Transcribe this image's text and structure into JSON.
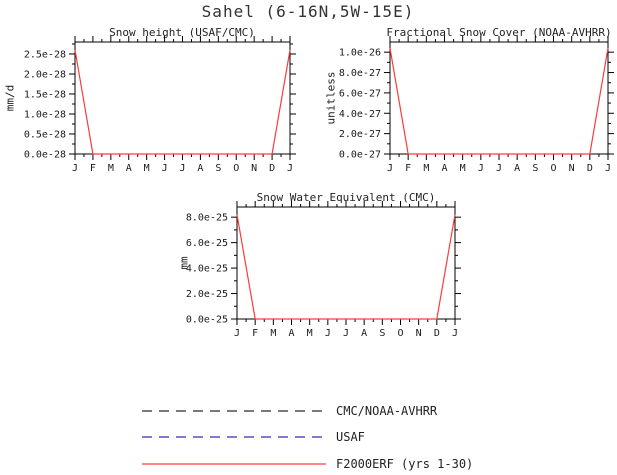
{
  "page": {
    "title": "Sahel (6-16N,5W-15E)"
  },
  "chart_data": [
    {
      "type": "line",
      "title": "Snow height (USAF/CMC)",
      "xlabel": "",
      "ylabel": "mm/d",
      "ylim": [
        0,
        2.8e-28
      ],
      "x_tick_labels": [
        "J",
        "F",
        "M",
        "A",
        "M",
        "J",
        "J",
        "A",
        "S",
        "O",
        "N",
        "D",
        "J"
      ],
      "y_ticks": [
        {
          "value": 0,
          "label": "0.0e-28"
        },
        {
          "value": 5e-29,
          "label": "0.5e-28"
        },
        {
          "value": 1e-28,
          "label": "1.0e-28"
        },
        {
          "value": 1.5e-28,
          "label": "1.5e-28"
        },
        {
          "value": 2e-28,
          "label": "2.0e-28"
        },
        {
          "value": 2.5e-28,
          "label": "2.5e-28"
        }
      ],
      "grid": false,
      "series": [
        {
          "name": "F2000ERF (yrs 1-30)",
          "color": "#fa3c3c",
          "values": [
            2.6e-28,
            0,
            0,
            0,
            0,
            0,
            0,
            0,
            0,
            0,
            0,
            0,
            2.6e-28
          ]
        }
      ]
    },
    {
      "type": "line",
      "title": "Fractional Snow Cover (NOAA-AVHRR)",
      "xlabel": "",
      "ylabel": "unitless",
      "ylim": [
        0,
        1.1e-26
      ],
      "x_tick_labels": [
        "J",
        "F",
        "M",
        "A",
        "M",
        "J",
        "J",
        "A",
        "S",
        "O",
        "N",
        "D",
        "J"
      ],
      "y_ticks": [
        {
          "value": 0,
          "label": "0.0e-27"
        },
        {
          "value": 2e-27,
          "label": "2.0e-27"
        },
        {
          "value": 4e-27,
          "label": "4.0e-27"
        },
        {
          "value": 6e-27,
          "label": "6.0e-27"
        },
        {
          "value": 8e-27,
          "label": "8.0e-27"
        },
        {
          "value": 1e-26,
          "label": "1.0e-26"
        }
      ],
      "grid": false,
      "series": [
        {
          "name": "F2000ERF (yrs 1-30)",
          "color": "#fa3c3c",
          "values": [
            1.04e-26,
            0,
            0,
            0,
            0,
            0,
            0,
            0,
            0,
            0,
            0,
            0,
            1.04e-26
          ]
        }
      ]
    },
    {
      "type": "line",
      "title": "Snow Water Equivalent (CMC)",
      "xlabel": "",
      "ylabel": "mm",
      "ylim": [
        0,
        8.8e-25
      ],
      "x_tick_labels": [
        "J",
        "F",
        "M",
        "A",
        "M",
        "J",
        "J",
        "A",
        "S",
        "O",
        "N",
        "D",
        "J"
      ],
      "y_ticks": [
        {
          "value": 0,
          "label": "0.0e-25"
        },
        {
          "value": 2e-25,
          "label": "2.0e-25"
        },
        {
          "value": 4e-25,
          "label": "4.0e-25"
        },
        {
          "value": 6e-25,
          "label": "6.0e-25"
        },
        {
          "value": 8e-25,
          "label": "8.0e-25"
        }
      ],
      "grid": false,
      "series": [
        {
          "name": "F2000ERF (yrs 1-30)",
          "color": "#fa3c3c",
          "values": [
            8.2e-25,
            0,
            0,
            0,
            0,
            0,
            0,
            0,
            0,
            0,
            0,
            0,
            8.2e-25
          ]
        }
      ]
    }
  ],
  "legend": {
    "items": [
      {
        "label": "CMC/NOAA-AVHRR",
        "color": "#2b2b2b",
        "style": "dashed"
      },
      {
        "label": "USAF",
        "color": "#2d2db4",
        "style": "dashed"
      },
      {
        "label": "F2000ERF (yrs 1-30)",
        "color": "#fa3c3c",
        "style": "solid"
      }
    ]
  }
}
